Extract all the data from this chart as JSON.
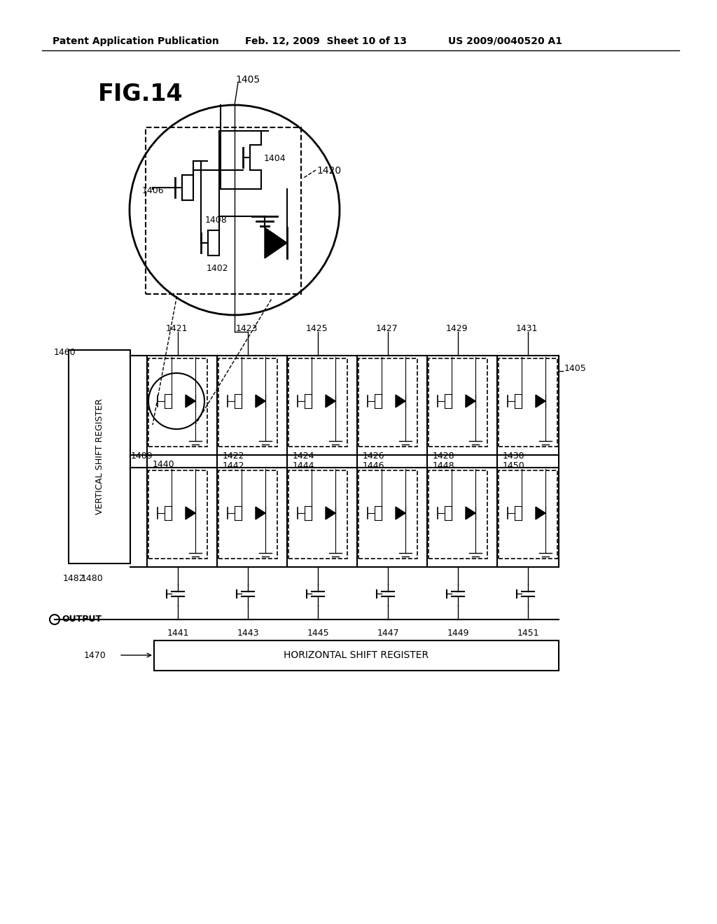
{
  "bg_color": "#ffffff",
  "header_left": "Patent Application Publication",
  "header_center": "Feb. 12, 2009  Sheet 10 of 13",
  "header_right": "US 2009/0040520 A1",
  "fig_title": "FIG.14",
  "label_1405_top": "1405",
  "label_1404": "1404",
  "label_1406": "1406",
  "label_1402": "1402",
  "label_1408": "1408",
  "label_1420": "1420",
  "label_1460": "1460",
  "label_1421": "1421",
  "label_1423": "1423",
  "label_1425": "1425",
  "label_1427": "1427",
  "label_1429": "1429",
  "label_1431": "1431",
  "label_1405_side": "1405",
  "label_1409": "1409",
  "label_1440": "1440",
  "label_1422": "1422",
  "label_1442": "1442",
  "label_1424": "1424",
  "label_1444": "1444",
  "label_1426": "1426",
  "label_1446": "1446",
  "label_1428": "1428",
  "label_1448": "1448",
  "label_1430": "1430",
  "label_1450": "1450",
  "label_1482": "1482",
  "label_1480": "1480",
  "label_output": "OUTPUT",
  "label_1441": "1441",
  "label_1443": "1443",
  "label_1445": "1445",
  "label_1447": "1447",
  "label_1449": "1449",
  "label_1451": "1451",
  "label_1470": "1470",
  "label_horiz_reg": "HORIZONTAL SHIFT REGISTER",
  "label_vert_reg": "VERTICAL SHIFT REGISTER"
}
